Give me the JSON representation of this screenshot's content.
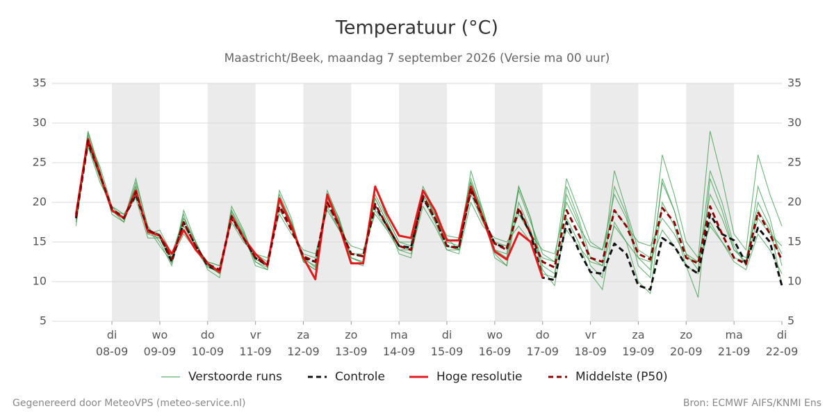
{
  "chart_data": {
    "type": "ensemble-line",
    "title": "Temperatuur (°C)",
    "subtitle": "Maastricht/Beek, maandag  7 september 2026 (Versie ma 00 uur)",
    "footer_left": "Gegenereerd door MeteoVPS (meteo-service.nl)",
    "footer_right": "Bron: ECMWF AIFS/KNMI Ens",
    "x_start": "2026-09-07T06:00",
    "x_step_hours": 6,
    "xlim": [
      "2026-09-06T18:00",
      "2026-09-22T00:00"
    ],
    "xticks": [
      {
        "value": "2026-09-08T00:00",
        "label": "di 08-09"
      },
      {
        "value": "2026-09-09T00:00",
        "label": "wo 09-09"
      },
      {
        "value": "2026-09-10T00:00",
        "label": "do 10-09"
      },
      {
        "value": "2026-09-11T00:00",
        "label": "vr 11-09"
      },
      {
        "value": "2026-09-12T00:00",
        "label": "za 12-09"
      },
      {
        "value": "2026-09-13T00:00",
        "label": "zo 13-09"
      },
      {
        "value": "2026-09-14T00:00",
        "label": "ma 14-09"
      },
      {
        "value": "2026-09-15T00:00",
        "label": "di 15-09"
      },
      {
        "value": "2026-09-16T00:00",
        "label": "wo 16-09"
      },
      {
        "value": "2026-09-17T00:00",
        "label": "do 17-09"
      },
      {
        "value": "2026-09-18T00:00",
        "label": "vr 18-09"
      },
      {
        "value": "2026-09-19T00:00",
        "label": "za 19-09"
      },
      {
        "value": "2026-09-20T00:00",
        "label": "zo 20-09"
      },
      {
        "value": "2026-09-21T00:00",
        "label": "ma 21-09"
      },
      {
        "value": "2026-09-22T00:00",
        "label": "di 22-09"
      }
    ],
    "shade_alternate_days": true,
    "ylim": [
      5,
      35
    ],
    "yticks": [
      5,
      10,
      15,
      20,
      25,
      30,
      35
    ],
    "mirror_y_axis": true,
    "grid": true,
    "legend": "bottom",
    "series": [
      {
        "name": "Verstoorde runs",
        "color": "#3a9a4a",
        "dash": false,
        "members": [
          [
            17.5,
            29,
            24,
            18.5,
            17.5,
            22.5,
            17,
            15,
            12,
            19,
            15,
            11.5,
            10.5,
            19.5,
            16.5,
            12.5,
            11.5,
            21.5,
            18,
            12.5,
            11.5,
            21,
            18,
            13,
            12.5,
            21,
            18,
            15,
            14.5,
            22,
            19,
            15.5,
            14,
            24,
            19,
            13.5,
            12,
            22,
            18,
            11,
            10.5,
            22,
            18,
            13,
            12,
            24,
            19,
            14,
            13,
            26,
            21,
            15,
            13,
            29,
            23,
            16,
            14,
            26,
            21,
            17
          ],
          [
            18.5,
            27,
            22.5,
            19.5,
            18.5,
            20.5,
            15.5,
            15.5,
            13,
            16,
            14,
            12.5,
            12,
            17.5,
            15,
            13.5,
            13,
            18.5,
            16,
            14,
            13.5,
            19,
            16.5,
            14.5,
            14,
            18.5,
            16.5,
            14,
            13.5,
            19.5,
            17,
            14,
            13.5,
            20,
            17,
            15.5,
            15,
            17,
            15,
            13,
            12.5,
            16.5,
            14.5,
            12.5,
            12,
            17,
            15,
            13,
            12.5,
            16.5,
            14.5,
            12,
            11,
            17.5,
            15,
            12.5,
            11.5,
            16,
            14,
            11
          ],
          [
            18,
            28.5,
            23,
            18.8,
            18.2,
            22,
            16,
            16.5,
            13.5,
            18,
            15,
            12,
            11,
            18.5,
            16,
            12,
            11.5,
            20,
            17,
            12.5,
            11.5,
            20.5,
            17.5,
            12.5,
            12,
            20.5,
            17.5,
            13.5,
            13,
            21,
            18.5,
            14.5,
            14,
            22.5,
            19,
            14,
            13,
            21.5,
            17.5,
            13.5,
            12.5,
            23,
            19,
            15,
            14,
            21,
            18,
            12,
            10.5,
            23,
            19,
            13.5,
            12.5,
            21,
            18,
            14,
            13,
            19,
            16.5,
            13.5
          ],
          [
            17,
            28,
            24.5,
            19.5,
            17.8,
            23,
            16.8,
            14.5,
            12.5,
            18.5,
            14,
            11.8,
            11.2,
            19,
            16.2,
            12.8,
            12,
            21,
            17.5,
            13,
            11.8,
            21.5,
            17.8,
            13,
            12.3,
            22,
            18,
            15,
            15,
            21,
            18.5,
            15.8,
            15.5,
            23,
            18.5,
            13,
            12,
            20,
            16.5,
            11.5,
            9.5,
            18,
            15,
            11,
            9,
            17.5,
            15,
            10,
            8.5,
            20,
            17,
            12,
            8,
            23,
            19,
            14,
            12.5,
            20,
            17,
            9.5
          ],
          [
            18.3,
            27.3,
            23,
            19,
            18.5,
            21,
            16.5,
            16,
            13,
            17,
            14.5,
            12.5,
            12,
            18,
            15.5,
            13.5,
            12.5,
            19,
            16.5,
            13.5,
            13,
            19.5,
            16.5,
            13.5,
            13.5,
            19,
            16.5,
            14,
            14,
            20.5,
            17.5,
            14,
            14,
            21,
            17.5,
            15,
            14.5,
            18.5,
            16,
            14,
            13.5,
            20,
            17,
            14.5,
            14,
            19,
            17,
            15,
            14.5,
            18,
            16,
            13,
            12.5,
            17,
            15,
            13,
            12.5,
            18,
            16,
            14.5
          ],
          [
            17.8,
            28.8,
            24,
            19,
            17.5,
            22,
            16,
            15.5,
            12.3,
            18,
            15,
            12,
            11,
            18.8,
            15.8,
            12.5,
            11.8,
            20.5,
            17.5,
            12.8,
            12,
            21,
            17.5,
            13,
            12.5,
            20.5,
            17.5,
            14.5,
            14,
            21.5,
            18.5,
            15,
            14.5,
            22.5,
            18.5,
            14,
            13.5,
            22,
            18,
            12,
            11,
            21,
            17.5,
            12,
            10.5,
            22,
            18.5,
            13,
            11.5,
            22.5,
            19,
            13.5,
            11.5,
            24,
            20,
            14.5,
            12,
            22,
            18,
            12
          ]
        ]
      },
      {
        "name": "Controle",
        "color": "#111111",
        "dash": true,
        "values": [
          18,
          27.5,
          23.5,
          19,
          18,
          21,
          16.5,
          15.8,
          12.5,
          17.5,
          14.5,
          12,
          11.3,
          18,
          15.5,
          13,
          12,
          19.5,
          17,
          13,
          12.5,
          20,
          17,
          13.5,
          13.2,
          19.5,
          17,
          14.5,
          14.3,
          20.5,
          18,
          14.5,
          14.3,
          21.5,
          18,
          14.8,
          14.2,
          19,
          16,
          10.5,
          10.2,
          17.5,
          14,
          11.2,
          11,
          14.8,
          13.5,
          9.5,
          9,
          15.5,
          14.5,
          12,
          11,
          18.5,
          16,
          15.2,
          12.3,
          16.8,
          15,
          9.5
        ]
      },
      {
        "name": "Hoge resolutie",
        "color": "#e31a1c",
        "dash": false,
        "values": [
          18.5,
          28,
          23.5,
          19,
          18,
          21.5,
          16.3,
          15.8,
          13.5,
          16.5,
          14,
          12.3,
          11.2,
          18.3,
          15.5,
          13.5,
          12,
          20.5,
          17,
          13,
          10.3,
          21,
          17,
          12.3,
          12.3,
          22,
          18.5,
          15.8,
          15.5,
          21.5,
          19,
          15.2,
          15.2,
          22,
          18,
          13.8,
          12.8,
          16.2,
          15,
          10.5,
          null,
          null,
          null,
          null,
          null,
          null,
          null,
          null,
          null,
          null,
          null,
          null,
          null,
          null,
          null,
          null,
          null,
          null,
          null,
          null
        ]
      },
      {
        "name": "Middelste (P50)",
        "color": "#8b0000",
        "dash": true,
        "values": [
          18.2,
          27.8,
          23.5,
          19.2,
          18,
          21.3,
          16.5,
          15.8,
          12.8,
          17.5,
          14.5,
          12.2,
          11.5,
          18.2,
          15.5,
          13,
          12.2,
          19.5,
          16.5,
          13.2,
          12.5,
          20,
          17,
          13.5,
          13.2,
          19.8,
          17,
          14.5,
          14,
          20.8,
          18,
          14.5,
          14.2,
          21.8,
          18,
          14.8,
          14,
          19.3,
          16,
          12.5,
          11.8,
          19,
          16,
          13,
          12.5,
          19,
          17,
          13.5,
          12.8,
          19.3,
          17.5,
          13,
          12.3,
          19.5,
          16,
          13,
          12.2,
          18.8,
          16,
          12.7
        ]
      }
    ]
  }
}
